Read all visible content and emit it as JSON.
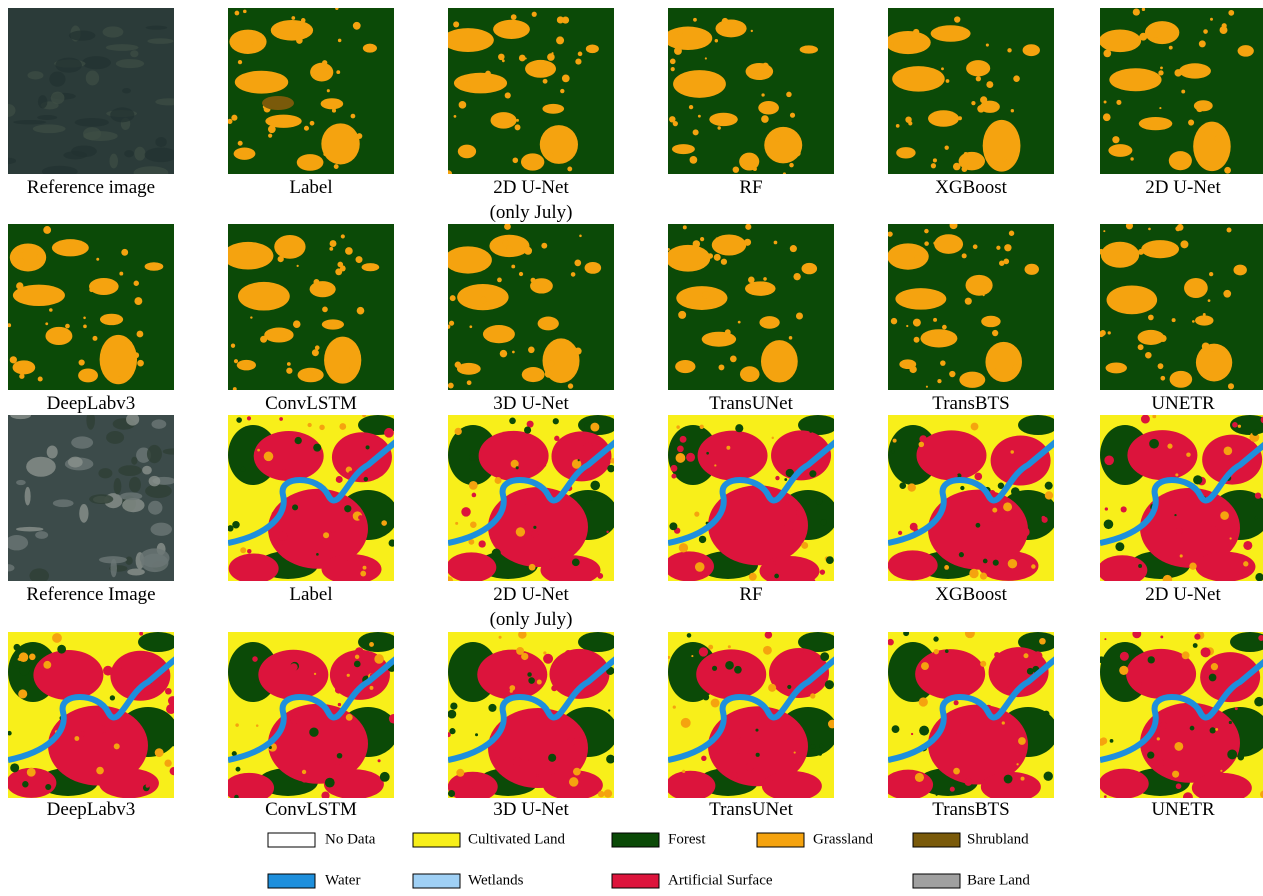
{
  "rows": [
    {
      "panels": [
        {
          "caption": "Reference image"
        },
        {
          "caption": "Label"
        },
        {
          "caption": [
            "2D U-Net",
            "(only July)"
          ]
        },
        {
          "caption": "RF"
        },
        {
          "caption": "XGBoost"
        },
        {
          "caption": "2D U-Net"
        }
      ]
    },
    {
      "panels": [
        {
          "caption": "DeepLabv3"
        },
        {
          "caption": "ConvLSTM"
        },
        {
          "caption": "3D U-Net"
        },
        {
          "caption": "TransUNet"
        },
        {
          "caption": "TransBTS"
        },
        {
          "caption": "UNETR"
        }
      ]
    },
    {
      "panels": [
        {
          "caption": "Reference Image"
        },
        {
          "caption": "Label"
        },
        {
          "caption": [
            "2D U-Net",
            "(only July)"
          ]
        },
        {
          "caption": "RF"
        },
        {
          "caption": "XGBoost"
        },
        {
          "caption": "2D U-Net"
        }
      ]
    },
    {
      "panels": [
        {
          "caption": "DeepLabv3"
        },
        {
          "caption": "ConvLSTM"
        },
        {
          "caption": "3D U-Net"
        },
        {
          "caption": "TransUNet"
        },
        {
          "caption": "TransBTS"
        },
        {
          "caption": "UNETR"
        }
      ]
    }
  ],
  "legend": [
    {
      "label": "No Data",
      "color": "#ffffff"
    },
    {
      "label": "Cultivated Land",
      "color": "#f8ef1a"
    },
    {
      "label": "Forest",
      "color": "#0b4a07"
    },
    {
      "label": "Grassland",
      "color": "#f5a30f"
    },
    {
      "label": "Shrubland",
      "color": "#7a5a0a"
    },
    {
      "label": "Water",
      "color": "#1e8fdc"
    },
    {
      "label": "Wetlands",
      "color": "#9fd0f5"
    },
    {
      "label": "Artificial Surface",
      "color": "#dc143c"
    },
    {
      "label": null,
      "color": null
    },
    {
      "label": "Bare Land",
      "color": "#a0a0a0"
    }
  ]
}
